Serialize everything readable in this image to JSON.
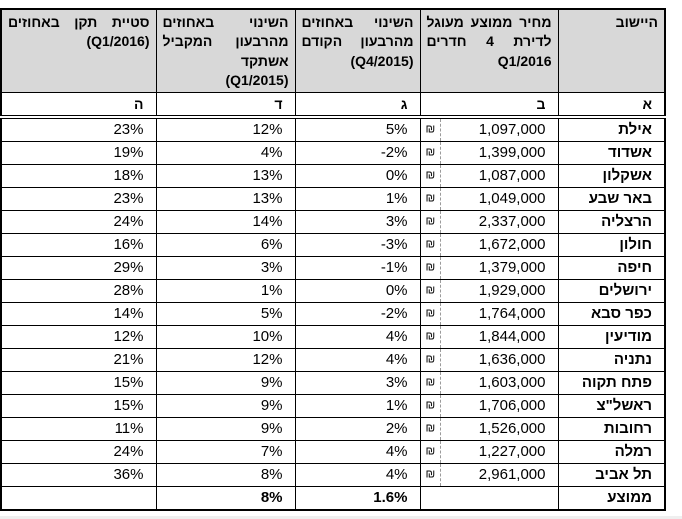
{
  "table": {
    "currency_symbol": "₪",
    "columns": {
      "city": {
        "label": "היישוב",
        "letter": "א"
      },
      "price": {
        "label": "מחיר ממוצע מעוגל\nלדירת 4 חדרים\nQ1/2016",
        "letter": "ב"
      },
      "qoq": {
        "label": "השינוי באחוזים\nמהרבעון הקודם\n(Q4/2015)",
        "letter": "ג"
      },
      "yoy": {
        "label": "השינוי באחוזים\nמהרבעון המקביל\nאשתקד\n(Q1/2015)",
        "letter": "ד"
      },
      "stdev": {
        "label": "סטיית תקן באחוזים\n(Q1/2016)",
        "letter": "ה"
      }
    },
    "rows": [
      {
        "city": "אילת",
        "price": "1,097,000",
        "qoq": "5%",
        "yoy": "12%",
        "stdev": "23%"
      },
      {
        "city": "אשדוד",
        "price": "1,399,000",
        "qoq": "-2%",
        "yoy": "4%",
        "stdev": "19%"
      },
      {
        "city": "אשקלון",
        "price": "1,087,000",
        "qoq": "0%",
        "yoy": "13%",
        "stdev": "18%"
      },
      {
        "city": "באר שבע",
        "price": "1,049,000",
        "qoq": "1%",
        "yoy": "13%",
        "stdev": "23%"
      },
      {
        "city": "הרצליה",
        "price": "2,337,000",
        "qoq": "3%",
        "yoy": "14%",
        "stdev": "24%"
      },
      {
        "city": "חולון",
        "price": "1,672,000",
        "qoq": "-3%",
        "yoy": "6%",
        "stdev": "16%"
      },
      {
        "city": "חיפה",
        "price": "1,379,000",
        "qoq": "-1%",
        "yoy": "3%",
        "stdev": "29%"
      },
      {
        "city": "ירושלים",
        "price": "1,929,000",
        "qoq": "0%",
        "yoy": "1%",
        "stdev": "28%"
      },
      {
        "city": "כפר סבא",
        "price": "1,764,000",
        "qoq": "-2%",
        "yoy": "5%",
        "stdev": "14%"
      },
      {
        "city": "מודיעין",
        "price": "1,844,000",
        "qoq": "4%",
        "yoy": "10%",
        "stdev": "12%"
      },
      {
        "city": "נתניה",
        "price": "1,636,000",
        "qoq": "4%",
        "yoy": "12%",
        "stdev": "21%"
      },
      {
        "city": "פתח תקוה",
        "price": "1,603,000",
        "qoq": "3%",
        "yoy": "9%",
        "stdev": "15%"
      },
      {
        "city": "ראשל\"צ",
        "price": "1,706,000",
        "qoq": "1%",
        "yoy": "9%",
        "stdev": "15%"
      },
      {
        "city": "רחובות",
        "price": "1,526,000",
        "qoq": "2%",
        "yoy": "9%",
        "stdev": "11%"
      },
      {
        "city": "רמלה",
        "price": "1,227,000",
        "qoq": "4%",
        "yoy": "7%",
        "stdev": "24%"
      },
      {
        "city": "תל אביב",
        "price": "2,961,000",
        "qoq": "4%",
        "yoy": "8%",
        "stdev": "36%"
      }
    ],
    "summary": {
      "label": "ממוצע",
      "qoq": "1.6%",
      "yoy": "8%"
    }
  },
  "colors": {
    "header_background": "#d8d8d8",
    "border": "#000000",
    "dashed_guide": "#9a9a9a"
  }
}
